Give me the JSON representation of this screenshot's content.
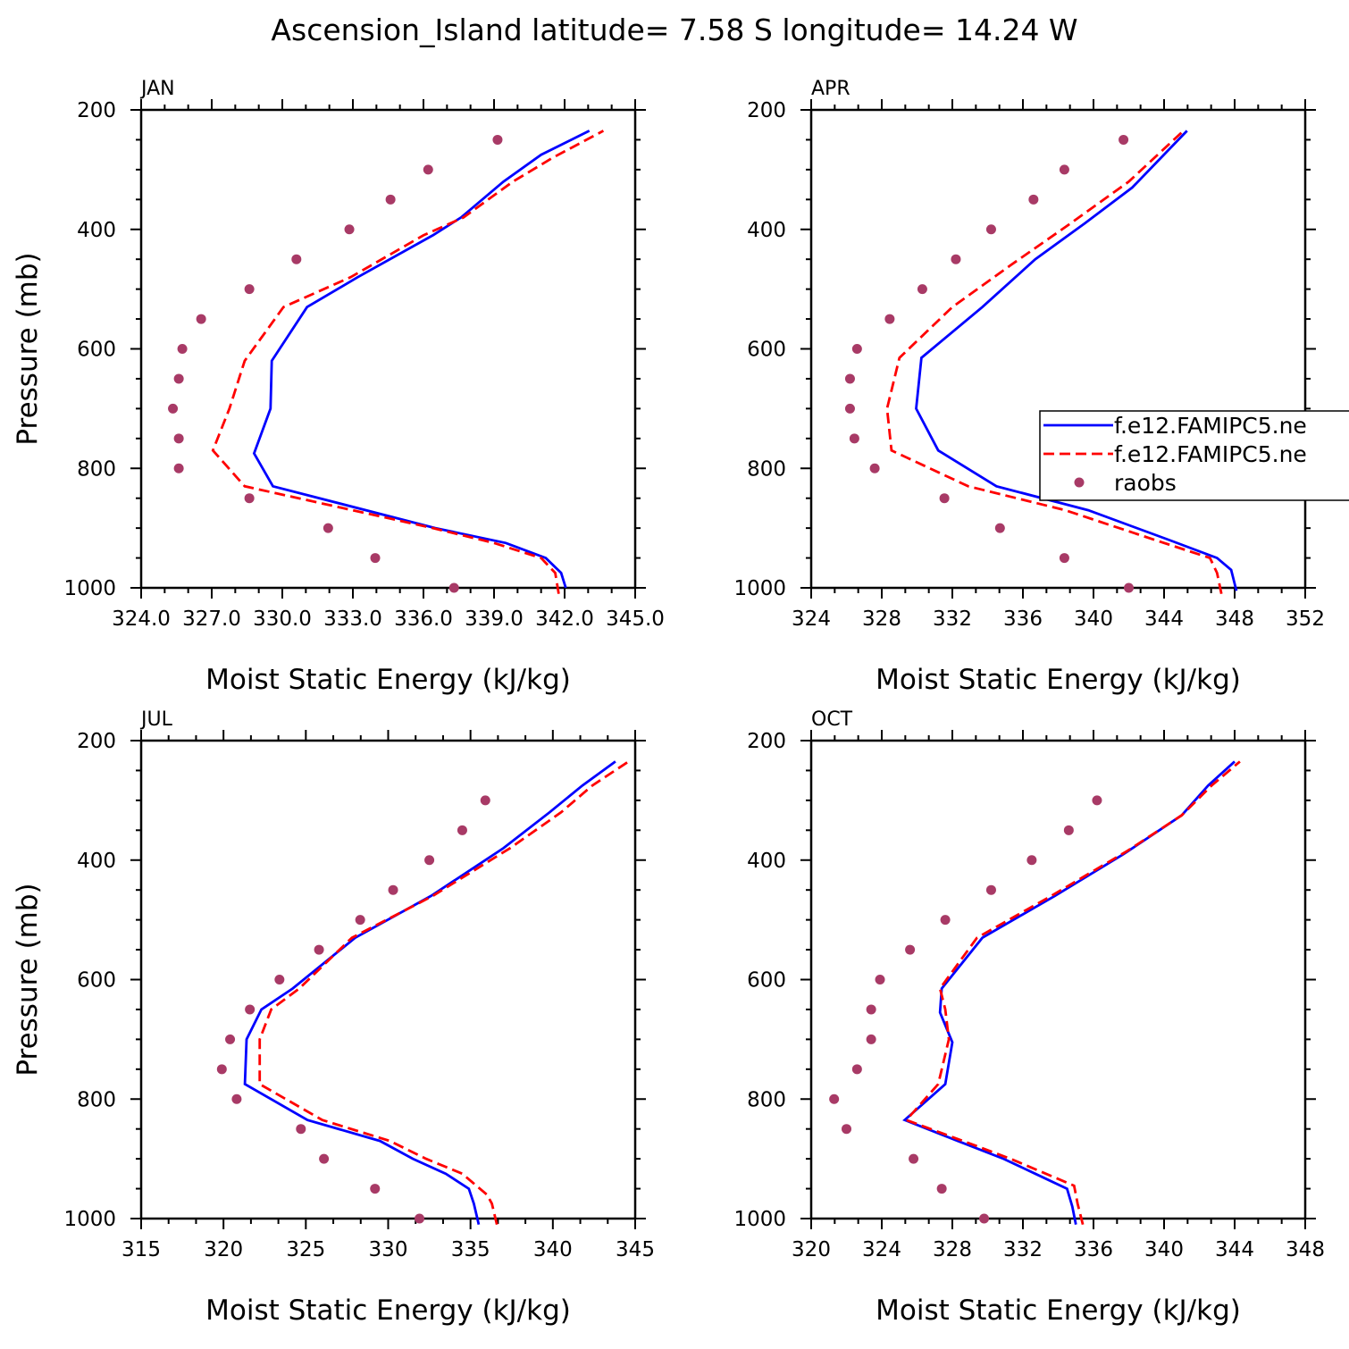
{
  "title": "Ascension_Island  latitude= 7.58 S longitude= 14.24 W",
  "colors": {
    "model1": "#0000ff",
    "model2": "#ff0000",
    "raobs": "#a83a66"
  },
  "legend": {
    "placement": "right of APR panel",
    "entries": [
      {
        "label": "f.e12.FAMIPC5.ne",
        "style": "solid-blue"
      },
      {
        "label": "f.e12.FAMIPC5.ne",
        "style": "dashed-red"
      },
      {
        "label": "raobs",
        "style": "dots"
      }
    ]
  },
  "chart_data": [
    {
      "type": "line",
      "panel": "JAN",
      "xlabel": "Moist Static Energy (kJ/kg)",
      "ylabel": "Pressure (mb)",
      "xlim": [
        324,
        345
      ],
      "ylim": [
        200,
        1000
      ],
      "xticks": [
        324,
        327,
        330,
        333,
        336,
        339,
        342,
        345
      ],
      "xtick_labels": [
        "324.0",
        "327.0",
        "330.0",
        "333.0",
        "336.0",
        "339.0",
        "342.0",
        "345.0"
      ],
      "yticks": [
        200,
        400,
        600,
        800,
        1000
      ],
      "ytick_labels": [
        "200",
        "400",
        "600",
        "800",
        "1000"
      ],
      "series": [
        {
          "name": "f.e12.FAMIPC5.ne",
          "style": "solid-blue",
          "x": [
            342.05,
            341.85,
            341.2,
            339.5,
            336.5,
            329.6,
            328.8,
            329.5,
            329.55,
            331.05,
            333.2,
            336.4,
            337.6,
            339.4,
            341.0,
            343.05
          ],
          "y": [
            1000,
            975,
            950,
            925,
            900,
            830,
            775,
            700,
            620,
            530,
            480,
            410,
            380,
            320,
            275,
            235
          ]
        },
        {
          "name": "f.e12.FAMIPC5.ne",
          "style": "dashed-red",
          "x": [
            341.75,
            341.6,
            341.0,
            339.0,
            336.4,
            328.4,
            327.05,
            327.75,
            328.4,
            330.05,
            332.9,
            336.0,
            337.7,
            339.8,
            341.5,
            343.65
          ],
          "y": [
            1010,
            975,
            950,
            925,
            900,
            830,
            770,
            700,
            620,
            530,
            480,
            410,
            380,
            320,
            280,
            235
          ]
        },
        {
          "name": "raobs",
          "style": "dots",
          "x": [
            337.3,
            333.95,
            331.95,
            328.6,
            325.6,
            325.6,
            325.35,
            325.6,
            325.75,
            326.55,
            328.6,
            330.6,
            332.85,
            334.6,
            336.2,
            339.15
          ],
          "y": [
            1000,
            950,
            900,
            850,
            800,
            750,
            700,
            650,
            600,
            550,
            500,
            450,
            400,
            350,
            300,
            250
          ]
        }
      ]
    },
    {
      "type": "line",
      "panel": "APR",
      "xlabel": "Moist Static Energy (kJ/kg)",
      "ylabel": "",
      "xlim": [
        324,
        352
      ],
      "ylim": [
        200,
        1000
      ],
      "xticks": [
        324,
        328,
        332,
        336,
        340,
        344,
        348,
        352
      ],
      "xtick_labels": [
        "324",
        "328",
        "332",
        "336",
        "340",
        "344",
        "348",
        "352"
      ],
      "yticks": [
        200,
        400,
        600,
        800,
        1000
      ],
      "ytick_labels": [
        "200",
        "400",
        "600",
        "800",
        "1000"
      ],
      "series": [
        {
          "name": "f.e12.FAMIPC5.ne",
          "style": "solid-blue",
          "x": [
            348.1,
            347.8,
            347.0,
            344.3,
            339.7,
            334.5,
            331.2,
            329.95,
            330.25,
            333.7,
            336.7,
            339.5,
            342.2,
            345.3
          ],
          "y": [
            1005,
            970,
            950,
            920,
            870,
            830,
            770,
            700,
            615,
            530,
            450,
            390,
            330,
            235
          ]
        },
        {
          "name": "f.e12.FAMIPC5.ne",
          "style": "dashed-red",
          "x": [
            347.25,
            347.0,
            346.6,
            343.5,
            338.4,
            332.9,
            328.55,
            328.3,
            329.0,
            332.0,
            335.3,
            338.7,
            342.0,
            345.1
          ],
          "y": [
            1010,
            975,
            950,
            920,
            870,
            830,
            770,
            700,
            615,
            530,
            460,
            390,
            320,
            235
          ]
        },
        {
          "name": "raobs",
          "style": "dots",
          "x": [
            342.0,
            338.35,
            334.7,
            331.55,
            327.6,
            326.45,
            326.2,
            326.2,
            326.6,
            328.45,
            330.3,
            332.2,
            334.2,
            336.6,
            338.35,
            341.7
          ],
          "y": [
            1000,
            950,
            900,
            850,
            800,
            750,
            700,
            650,
            600,
            550,
            500,
            450,
            400,
            350,
            300,
            250
          ]
        }
      ]
    },
    {
      "type": "line",
      "panel": "JUL",
      "xlabel": "Moist Static Energy (kJ/kg)",
      "ylabel": "Pressure (mb)",
      "xlim": [
        315,
        345
      ],
      "ylim": [
        200,
        1000
      ],
      "xticks": [
        315,
        320,
        325,
        330,
        335,
        340,
        345
      ],
      "xtick_labels": [
        "315",
        "320",
        "325",
        "330",
        "335",
        "340",
        "345"
      ],
      "yticks": [
        200,
        400,
        600,
        800,
        1000
      ],
      "ytick_labels": [
        "200",
        "400",
        "600",
        "800",
        "1000"
      ],
      "series": [
        {
          "name": "f.e12.FAMIPC5.ne",
          "style": "solid-blue",
          "x": [
            335.5,
            335.2,
            334.9,
            333.5,
            331.5,
            329.5,
            325.1,
            321.3,
            321.4,
            322.3,
            324.2,
            328.0,
            332.6,
            337.0,
            339.8,
            341.8,
            343.8
          ],
          "y": [
            1010,
            975,
            950,
            925,
            900,
            870,
            835,
            775,
            700,
            650,
            615,
            530,
            460,
            380,
            320,
            275,
            235
          ]
        },
        {
          "name": "f.e12.FAMIPC5.ne",
          "style": "dashed-red",
          "x": [
            336.6,
            336.3,
            336.0,
            334.5,
            332.3,
            330.1,
            326.0,
            322.2,
            322.2,
            322.9,
            324.6,
            327.8,
            332.7,
            337.4,
            340.5,
            342.4,
            344.6
          ],
          "y": [
            1010,
            975,
            960,
            925,
            900,
            870,
            835,
            775,
            700,
            650,
            615,
            530,
            460,
            380,
            320,
            275,
            235
          ]
        },
        {
          "name": "raobs",
          "style": "dots",
          "x": [
            331.9,
            329.2,
            326.1,
            324.7,
            320.8,
            319.9,
            320.4,
            321.6,
            323.4,
            325.8,
            328.3,
            330.3,
            332.5,
            334.5,
            335.9
          ],
          "y": [
            1000,
            950,
            900,
            850,
            800,
            750,
            700,
            650,
            600,
            550,
            500,
            450,
            400,
            350,
            300
          ]
        }
      ]
    },
    {
      "type": "line",
      "panel": "OCT",
      "xlabel": "Moist Static Energy (kJ/kg)",
      "ylabel": "",
      "xlim": [
        320,
        348
      ],
      "ylim": [
        200,
        1000
      ],
      "xticks": [
        320,
        324,
        328,
        332,
        336,
        340,
        344,
        348
      ],
      "xtick_labels": [
        "320",
        "324",
        "328",
        "332",
        "336",
        "340",
        "344",
        "348"
      ],
      "yticks": [
        200,
        400,
        600,
        800,
        1000
      ],
      "ytick_labels": [
        "200",
        "400",
        "600",
        "800",
        "1000"
      ],
      "series": [
        {
          "name": "f.e12.FAMIPC5.ne",
          "style": "solid-blue",
          "x": [
            335.0,
            334.8,
            334.5,
            332.7,
            330.9,
            328.3,
            325.3,
            327.6,
            328.0,
            327.3,
            327.4,
            329.7,
            333.8,
            337.7,
            341.0,
            342.5,
            344.0
          ],
          "y": [
            1010,
            980,
            950,
            925,
            900,
            870,
            835,
            775,
            705,
            655,
            615,
            530,
            460,
            390,
            325,
            275,
            235
          ]
        },
        {
          "name": "f.e12.FAMIPC5.ne",
          "style": "dashed-red",
          "x": [
            335.4,
            335.1,
            334.9,
            333.3,
            331.3,
            328.6,
            325.4,
            327.2,
            327.8,
            327.6,
            327.3,
            329.4,
            333.6,
            337.9,
            341.0,
            342.7,
            344.3
          ],
          "y": [
            1010,
            975,
            945,
            925,
            900,
            870,
            835,
            775,
            700,
            650,
            615,
            530,
            460,
            385,
            325,
            275,
            235
          ]
        },
        {
          "name": "raobs",
          "style": "dots",
          "x": [
            329.8,
            327.4,
            325.8,
            322.0,
            321.3,
            322.6,
            323.4,
            323.4,
            323.9,
            325.6,
            327.6,
            330.2,
            332.5,
            334.6,
            336.2
          ],
          "y": [
            1000,
            950,
            900,
            850,
            800,
            750,
            700,
            650,
            600,
            550,
            500,
            450,
            400,
            350,
            300
          ]
        }
      ]
    }
  ]
}
